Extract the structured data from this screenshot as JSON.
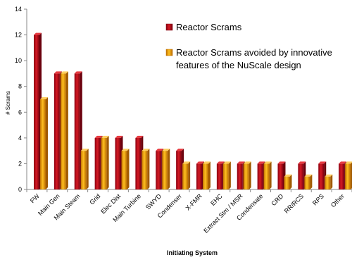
{
  "chart_data": {
    "type": "bar",
    "title": "",
    "xlabel": "Initiating System",
    "ylabel": "# Scrams",
    "ylim": [
      0,
      14
    ],
    "yticks": [
      0,
      2,
      4,
      6,
      8,
      10,
      12,
      14
    ],
    "grid": false,
    "legend_position": "top-right",
    "categories": [
      "FW",
      "Main Gen",
      "Main Steam",
      "Grid",
      "Elec Dist",
      "Main Turbine",
      "SWYD",
      "Condenser",
      "X-FMR",
      "EHC",
      "Extract Stm / MSR",
      "Condensate",
      "CRD",
      "RR/RCS",
      "RPS",
      "Other"
    ],
    "series": [
      {
        "name": "Reactor Scrams",
        "color": "#c0001a",
        "values": [
          12,
          9,
          9,
          4,
          4,
          4,
          3,
          3,
          2,
          2,
          2,
          2,
          2,
          2,
          2,
          2
        ]
      },
      {
        "name": "Reactor Scrams avoided by innovative features of the NuScale design",
        "color": "#f0a000",
        "values": [
          7,
          9,
          3,
          4,
          3,
          3,
          3,
          2,
          2,
          2,
          2,
          2,
          1,
          1,
          1,
          2
        ]
      }
    ],
    "legend": {
      "series1_label": "Reactor Scrams",
      "series2_line1": "Reactor Scrams avoided by innovative",
      "series2_line2": "features of the NuScale design"
    }
  }
}
